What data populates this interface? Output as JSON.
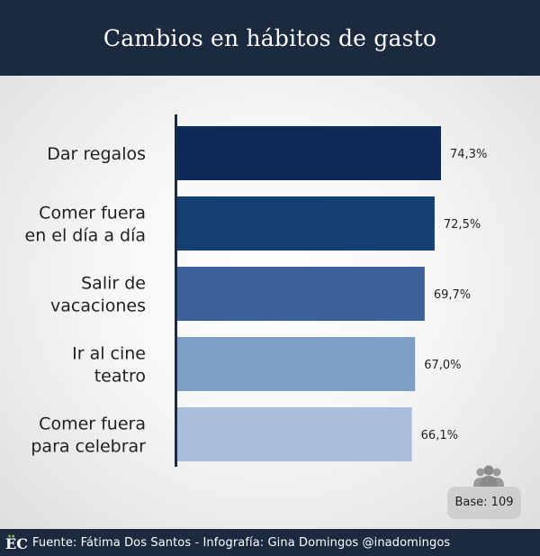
{
  "header": {
    "title": "Cambios en hábitos de gasto"
  },
  "chart_data": {
    "type": "bar",
    "orientation": "horizontal",
    "title": "Cambios en hábitos de gasto",
    "categories": [
      [
        "Dar regalos"
      ],
      [
        "Comer fuera",
        "en el día a día"
      ],
      [
        "Salir de",
        "vacaciones"
      ],
      [
        "Ir al cine",
        "teatro"
      ],
      [
        "Comer fuera",
        "para celebrar"
      ]
    ],
    "values": [
      74.3,
      72.5,
      69.7,
      67.0,
      66.1
    ],
    "value_labels": [
      "74,3%",
      "72,5%",
      "69,7%",
      "67,0%",
      "66,1%"
    ],
    "bar_colors": [
      "#0e2b57",
      "#143f72",
      "#3c6198",
      "#7e9ec4",
      "#a8bedb"
    ],
    "xlim": [
      0,
      74.3
    ],
    "grid": false,
    "legend": "none"
  },
  "base": {
    "label": "Base: 109",
    "icon": "people-icon"
  },
  "footer": {
    "logo": "EC",
    "source": "Fuente: Fátima Dos Santos - Infografía: Gina Domingos @inadomingos"
  }
}
